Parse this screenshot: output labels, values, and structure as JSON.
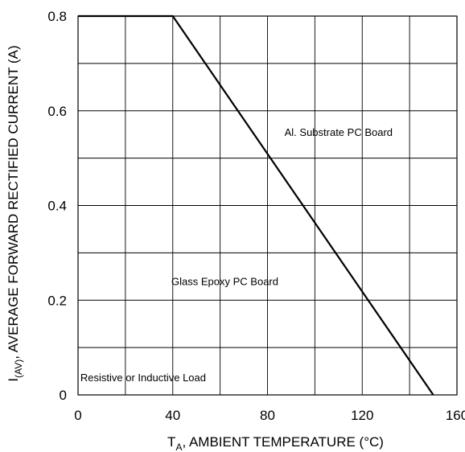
{
  "chart_data": {
    "type": "line",
    "xlabel_main": "T",
    "xlabel_sub": "A",
    "xlabel_rest": ", AMBIENT TEMPERATURE (°C)",
    "ylabel_main": "I",
    "ylabel_sub": "(AV)",
    "ylabel_rest": ", AVERAGE FORWARD RECTIFIED CURRENT (A)",
    "xlim": [
      0,
      160
    ],
    "ylim": [
      0,
      0.8
    ],
    "x_ticks": [
      0,
      40,
      80,
      120,
      160
    ],
    "x_tick_labels": [
      "0",
      "40",
      "80",
      "120",
      "160"
    ],
    "y_ticks": [
      0,
      0.2,
      0.4,
      0.6,
      0.8
    ],
    "y_tick_labels": [
      "0",
      "0.2",
      "0.4",
      "0.6",
      "0.8"
    ],
    "x_grid_step": 20,
    "y_grid_step": 0.1,
    "grid": true,
    "series": [
      {
        "x": [
          0,
          40,
          150
        ],
        "y": [
          0.8,
          0.8,
          0
        ]
      }
    ],
    "annotations": [
      {
        "text": "Al. Substrate PC Board",
        "x": 110,
        "y": 0.555
      },
      {
        "text": "Glass Epoxy PC Board",
        "x": 62,
        "y": 0.24
      },
      {
        "text": "Resistive or Inductive Load",
        "x": 27.5,
        "y": 0.037
      }
    ],
    "colors": {
      "line": "#000000",
      "grid": "#000000"
    }
  }
}
